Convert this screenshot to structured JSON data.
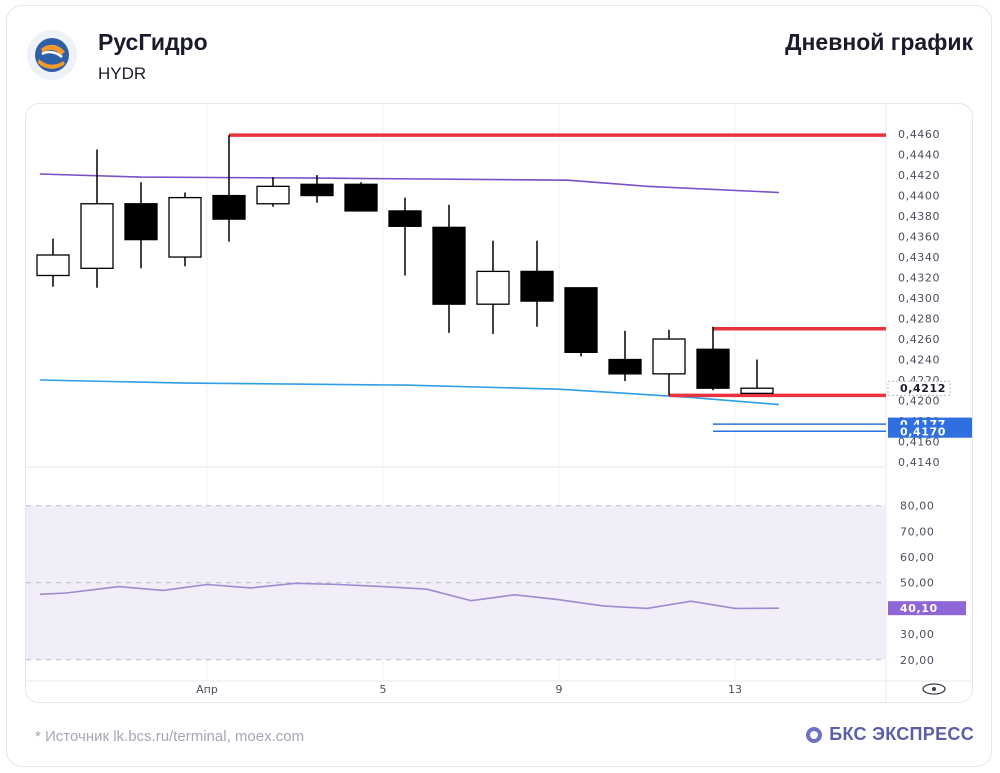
{
  "header": {
    "company": "РусГидро",
    "ticker": "HYDR",
    "chart_kind": "Дневной график"
  },
  "footer": {
    "source": "* Источник lk.bcs.ru/terminal, moex.com",
    "brand": "БКС ЭКСПРЕСС"
  },
  "colors": {
    "up_candle_fill": "#ffffff",
    "down_candle_fill": "#000000",
    "upper_ma": "#7b4fc9",
    "lower_ma": "#2f9ee8",
    "level_line": "#e8333f",
    "rsi_line": "#9d8ad0",
    "rsi_band": "#f1eefa",
    "current_price_label": "#2f6fe0",
    "rsi_value_label": "#8f66d6"
  },
  "chart_data": [
    {
      "type": "candlestick",
      "x_ticks": [
        {
          "index": 3.5,
          "label": "Апр"
        },
        {
          "index": 7.5,
          "label": "5"
        },
        {
          "index": 11.5,
          "label": "9"
        },
        {
          "index": 15.5,
          "label": "13"
        }
      ],
      "y_ticks": [
        "0,4460",
        "0,4440",
        "0,4420",
        "0,4400",
        "0,4380",
        "0,4360",
        "0,4340",
        "0,4320",
        "0,4300",
        "0,4280",
        "0,4260",
        "0,4240",
        "0,4220",
        "0,4200",
        "0,4180",
        "0,4160",
        "0,4140"
      ],
      "ylim": [
        0.414,
        0.4463
      ],
      "candles": [
        {
          "o": 0.4322,
          "h": 0.4358,
          "l": 0.4311,
          "c": 0.4342
        },
        {
          "o": 0.4329,
          "h": 0.4445,
          "l": 0.431,
          "c": 0.4392
        },
        {
          "o": 0.4392,
          "h": 0.4413,
          "l": 0.4329,
          "c": 0.4357
        },
        {
          "o": 0.434,
          "h": 0.4403,
          "l": 0.4331,
          "c": 0.4398
        },
        {
          "o": 0.44,
          "h": 0.4459,
          "l": 0.4355,
          "c": 0.4377
        },
        {
          "o": 0.4392,
          "h": 0.4418,
          "l": 0.4389,
          "c": 0.4409
        },
        {
          "o": 0.4411,
          "h": 0.442,
          "l": 0.4393,
          "c": 0.44
        },
        {
          "o": 0.4411,
          "h": 0.4413,
          "l": 0.4385,
          "c": 0.4385
        },
        {
          "o": 0.4385,
          "h": 0.4398,
          "l": 0.4322,
          "c": 0.437
        },
        {
          "o": 0.4369,
          "h": 0.4391,
          "l": 0.4266,
          "c": 0.4294
        },
        {
          "o": 0.4294,
          "h": 0.4356,
          "l": 0.4265,
          "c": 0.4326
        },
        {
          "o": 0.4326,
          "h": 0.4356,
          "l": 0.4272,
          "c": 0.4297
        },
        {
          "o": 0.431,
          "h": 0.431,
          "l": 0.4243,
          "c": 0.4247
        },
        {
          "o": 0.424,
          "h": 0.4268,
          "l": 0.4219,
          "c": 0.4226
        },
        {
          "o": 0.4226,
          "h": 0.4269,
          "l": 0.4205,
          "c": 0.426
        },
        {
          "o": 0.425,
          "h": 0.4272,
          "l": 0.421,
          "c": 0.4212
        },
        {
          "o": 0.4207,
          "h": 0.424,
          "l": 0.4207,
          "c": 0.4212
        }
      ],
      "upper_ma": [
        [
          -0.3,
          0.4421
        ],
        [
          2,
          0.4418
        ],
        [
          6,
          0.4417
        ],
        [
          11.7,
          0.4415
        ],
        [
          13.5,
          0.4409
        ],
        [
          16.5,
          0.4403
        ]
      ],
      "lower_ma": [
        [
          -0.3,
          0.422
        ],
        [
          3,
          0.4217
        ],
        [
          8,
          0.4215
        ],
        [
          11.5,
          0.4211
        ],
        [
          14.5,
          0.4203
        ],
        [
          16.5,
          0.4196
        ]
      ],
      "horizontal_levels": [
        {
          "value": 0.4459,
          "from_index": 4.0
        },
        {
          "value": 0.427,
          "from_index": 15.0
        },
        {
          "value": 0.4205,
          "from_index": 14.0
        }
      ],
      "blue_levels": [
        {
          "value": 0.4177,
          "label": "0,4177"
        },
        {
          "value": 0.417,
          "label": "0,4170"
        }
      ],
      "current_price": {
        "value": 0.4212,
        "label": "0,4212"
      }
    },
    {
      "type": "line",
      "y_ticks": [
        "80,00",
        "70,00",
        "60,00",
        "50,00",
        "40,00",
        "30,00",
        "20,00"
      ],
      "ylim": [
        13.3,
        86.5
      ],
      "band": [
        20,
        80
      ],
      "dashed_levels": [
        80,
        50,
        20
      ],
      "x": [
        -0.3,
        0.3,
        1.5,
        2.5,
        3.5,
        4.5,
        5.5,
        6.5,
        7.5,
        8.5,
        9.5,
        10.5,
        11.5,
        12.5,
        13.5,
        14.5,
        15.5,
        16.5
      ],
      "values": [
        45.5,
        46,
        48.5,
        47,
        49.3,
        48,
        49.8,
        49.3,
        48.5,
        47.5,
        43,
        45.3,
        43.4,
        41,
        40,
        42.8,
        40,
        40.1
      ],
      "current_value": {
        "value": 40.1,
        "label": "40,10"
      }
    }
  ]
}
